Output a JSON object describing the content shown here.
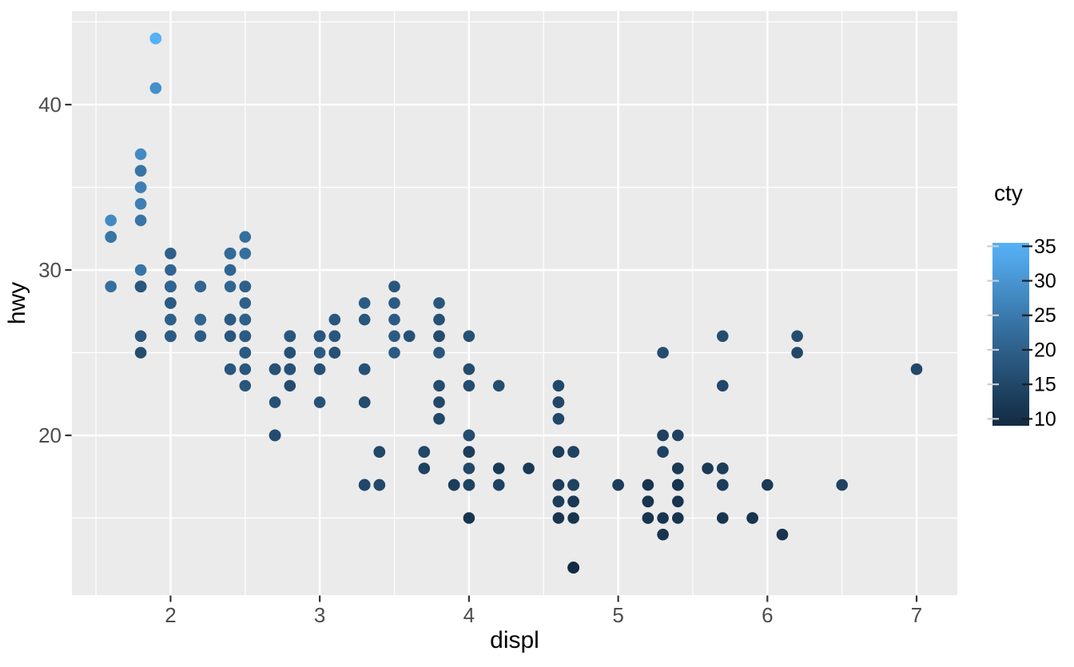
{
  "style": {
    "background": "#FFFFFF",
    "panel_bg": "#EBEBEB",
    "grid": "#FFFFFF",
    "axis_text": "#4D4D4D",
    "axis_title": "#000000",
    "tick_color": "#333333",
    "legend_text": "#000000",
    "legend_tick_left": "#C9CED3",
    "legend_tick_right": "#1E1E1E"
  },
  "chart_data": {
    "type": "scatter",
    "xlabel": "displ",
    "ylabel": "hwy",
    "xlim": [
      1.339,
      7.273
    ],
    "ylim": [
      10.34,
      45.65
    ],
    "x_ticks": [
      2,
      3,
      4,
      5,
      6,
      7
    ],
    "x_minor_ticks": [
      1.5,
      2.5,
      3.5,
      4.5,
      5.5,
      6.5
    ],
    "y_ticks": [
      20,
      30,
      40
    ],
    "y_minor_ticks": [
      15,
      25,
      35,
      45
    ],
    "grid": true,
    "legend": {
      "title": "cty",
      "position": "right",
      "ticks": [
        10,
        15,
        20,
        25,
        30,
        35
      ],
      "bar_lim": [
        9,
        35.5
      ]
    },
    "color_scale": {
      "type": "gradient",
      "low": "#132B43",
      "high": "#56B1F7",
      "domain": [
        9,
        35
      ]
    },
    "point_columns": [
      "displ",
      "hwy",
      "cty"
    ],
    "points": [
      [
        1.8,
        29,
        18
      ],
      [
        1.8,
        29,
        21
      ],
      [
        2.0,
        31,
        20
      ],
      [
        2.0,
        30,
        21
      ],
      [
        2.8,
        26,
        16
      ],
      [
        2.8,
        26,
        18
      ],
      [
        3.1,
        27,
        18
      ],
      [
        1.8,
        26,
        18
      ],
      [
        1.8,
        25,
        16
      ],
      [
        2.0,
        28,
        20
      ],
      [
        2.0,
        27,
        19
      ],
      [
        2.8,
        25,
        15
      ],
      [
        2.8,
        25,
        17
      ],
      [
        3.1,
        25,
        17
      ],
      [
        3.1,
        25,
        15
      ],
      [
        2.8,
        24,
        15
      ],
      [
        3.1,
        25,
        17
      ],
      [
        4.2,
        23,
        16
      ],
      [
        5.3,
        20,
        14
      ],
      [
        5.3,
        15,
        11
      ],
      [
        5.3,
        20,
        14
      ],
      [
        5.7,
        17,
        13
      ],
      [
        6.0,
        17,
        12
      ],
      [
        5.7,
        26,
        16
      ],
      [
        5.7,
        23,
        15
      ],
      [
        6.2,
        26,
        16
      ],
      [
        6.2,
        25,
        15
      ],
      [
        7.0,
        24,
        15
      ],
      [
        5.3,
        19,
        14
      ],
      [
        5.3,
        14,
        11
      ],
      [
        5.7,
        15,
        11
      ],
      [
        6.5,
        17,
        14
      ],
      [
        2.4,
        27,
        19
      ],
      [
        2.4,
        30,
        22
      ],
      [
        3.1,
        26,
        18
      ],
      [
        3.5,
        29,
        18
      ],
      [
        3.6,
        26,
        17
      ],
      [
        2.4,
        24,
        18
      ],
      [
        3.0,
        24,
        17
      ],
      [
        3.3,
        22,
        16
      ],
      [
        3.3,
        22,
        16
      ],
      [
        3.3,
        24,
        17
      ],
      [
        3.3,
        24,
        17
      ],
      [
        3.3,
        17,
        11
      ],
      [
        3.8,
        22,
        15
      ],
      [
        3.8,
        21,
        15
      ],
      [
        3.8,
        23,
        16
      ],
      [
        4.0,
        23,
        16
      ],
      [
        3.7,
        19,
        15
      ],
      [
        3.7,
        18,
        14
      ],
      [
        3.9,
        17,
        13
      ],
      [
        3.9,
        17,
        14
      ],
      [
        4.7,
        19,
        14
      ],
      [
        4.7,
        19,
        14
      ],
      [
        4.7,
        12,
        9
      ],
      [
        5.2,
        17,
        11
      ],
      [
        5.2,
        15,
        11
      ],
      [
        3.9,
        17,
        13
      ],
      [
        4.7,
        17,
        13
      ],
      [
        4.7,
        12,
        9
      ],
      [
        4.7,
        17,
        13
      ],
      [
        5.2,
        16,
        11
      ],
      [
        5.7,
        18,
        13
      ],
      [
        5.9,
        15,
        11
      ],
      [
        4.7,
        16,
        12
      ],
      [
        4.7,
        12,
        9
      ],
      [
        4.7,
        17,
        13
      ],
      [
        4.7,
        17,
        13
      ],
      [
        4.7,
        16,
        12
      ],
      [
        4.7,
        12,
        9
      ],
      [
        5.2,
        15,
        11
      ],
      [
        5.2,
        16,
        11
      ],
      [
        5.7,
        17,
        13
      ],
      [
        5.9,
        15,
        11
      ],
      [
        4.6,
        17,
        11
      ],
      [
        5.4,
        17,
        11
      ],
      [
        5.4,
        18,
        12
      ],
      [
        4.0,
        17,
        14
      ],
      [
        4.0,
        19,
        15
      ],
      [
        4.0,
        17,
        14
      ],
      [
        4.0,
        19,
        13
      ],
      [
        4.6,
        19,
        13
      ],
      [
        5.0,
        17,
        13
      ],
      [
        4.2,
        17,
        14
      ],
      [
        4.2,
        17,
        14
      ],
      [
        4.6,
        16,
        13
      ],
      [
        4.6,
        16,
        13
      ],
      [
        4.6,
        17,
        13
      ],
      [
        5.4,
        15,
        11
      ],
      [
        5.4,
        17,
        13
      ],
      [
        3.8,
        26,
        18
      ],
      [
        3.8,
        25,
        18
      ],
      [
        4.0,
        26,
        17
      ],
      [
        4.0,
        24,
        16
      ],
      [
        4.6,
        21,
        15
      ],
      [
        4.6,
        22,
        15
      ],
      [
        4.6,
        23,
        15
      ],
      [
        4.6,
        22,
        15
      ],
      [
        5.4,
        20,
        14
      ],
      [
        1.6,
        33,
        28
      ],
      [
        1.6,
        32,
        24
      ],
      [
        1.6,
        32,
        25
      ],
      [
        1.6,
        29,
        23
      ],
      [
        1.6,
        32,
        24
      ],
      [
        1.8,
        34,
        26
      ],
      [
        1.8,
        36,
        25
      ],
      [
        1.8,
        36,
        24
      ],
      [
        2.0,
        29,
        21
      ],
      [
        2.4,
        26,
        18
      ],
      [
        2.4,
        27,
        18
      ],
      [
        2.4,
        30,
        21
      ],
      [
        2.4,
        31,
        21
      ],
      [
        2.5,
        26,
        18
      ],
      [
        2.5,
        26,
        18
      ],
      [
        3.3,
        28,
        19
      ],
      [
        2.0,
        26,
        19
      ],
      [
        2.0,
        29,
        19
      ],
      [
        2.0,
        28,
        20
      ],
      [
        2.0,
        27,
        20
      ],
      [
        2.7,
        24,
        17
      ],
      [
        2.7,
        24,
        16
      ],
      [
        2.7,
        24,
        17
      ],
      [
        3.0,
        22,
        17
      ],
      [
        3.7,
        19,
        15
      ],
      [
        4.0,
        20,
        15
      ],
      [
        4.7,
        17,
        14
      ],
      [
        4.7,
        12,
        9
      ],
      [
        4.7,
        19,
        14
      ],
      [
        5.7,
        18,
        13
      ],
      [
        6.1,
        14,
        11
      ],
      [
        4.0,
        15,
        11
      ],
      [
        4.2,
        18,
        12
      ],
      [
        4.4,
        18,
        12
      ],
      [
        4.6,
        15,
        11
      ],
      [
        5.4,
        17,
        11
      ],
      [
        5.4,
        16,
        11
      ],
      [
        5.4,
        18,
        12
      ],
      [
        4.0,
        17,
        14
      ],
      [
        4.0,
        19,
        13
      ],
      [
        4.6,
        19,
        13
      ],
      [
        5.0,
        17,
        13
      ],
      [
        2.4,
        29,
        21
      ],
      [
        2.4,
        27,
        19
      ],
      [
        2.5,
        31,
        23
      ],
      [
        2.5,
        32,
        23
      ],
      [
        3.5,
        27,
        19
      ],
      [
        3.5,
        26,
        19
      ],
      [
        3.0,
        26,
        18
      ],
      [
        3.0,
        25,
        19
      ],
      [
        3.5,
        25,
        19
      ],
      [
        3.3,
        17,
        14
      ],
      [
        3.3,
        17,
        15
      ],
      [
        4.0,
        20,
        14
      ],
      [
        5.6,
        18,
        12
      ],
      [
        3.1,
        26,
        18
      ],
      [
        3.8,
        26,
        16
      ],
      [
        3.8,
        27,
        17
      ],
      [
        3.8,
        28,
        18
      ],
      [
        5.3,
        25,
        16
      ],
      [
        2.5,
        25,
        18
      ],
      [
        2.5,
        24,
        18
      ],
      [
        2.5,
        27,
        20
      ],
      [
        2.5,
        25,
        19
      ],
      [
        2.5,
        26,
        20
      ],
      [
        2.5,
        23,
        18
      ],
      [
        2.2,
        26,
        21
      ],
      [
        2.2,
        26,
        19
      ],
      [
        2.5,
        26,
        19
      ],
      [
        2.5,
        26,
        19
      ],
      [
        2.5,
        25,
        20
      ],
      [
        2.5,
        27,
        20
      ],
      [
        2.5,
        25,
        19
      ],
      [
        2.5,
        27,
        20
      ],
      [
        2.7,
        20,
        15
      ],
      [
        2.7,
        20,
        16
      ],
      [
        3.4,
        19,
        15
      ],
      [
        3.4,
        17,
        15
      ],
      [
        4.0,
        20,
        16
      ],
      [
        4.7,
        17,
        14
      ],
      [
        2.2,
        29,
        21
      ],
      [
        2.2,
        27,
        21
      ],
      [
        2.4,
        31,
        21
      ],
      [
        2.4,
        31,
        21
      ],
      [
        3.0,
        26,
        18
      ],
      [
        3.0,
        26,
        18
      ],
      [
        3.5,
        28,
        19
      ],
      [
        2.2,
        27,
        21
      ],
      [
        2.2,
        29,
        21
      ],
      [
        2.4,
        31,
        21
      ],
      [
        2.4,
        31,
        22
      ],
      [
        3.0,
        26,
        18
      ],
      [
        3.0,
        26,
        18
      ],
      [
        3.3,
        27,
        18
      ],
      [
        1.8,
        30,
        24
      ],
      [
        1.8,
        33,
        24
      ],
      [
        1.8,
        35,
        26
      ],
      [
        1.8,
        37,
        28
      ],
      [
        1.8,
        35,
        26
      ],
      [
        4.7,
        15,
        11
      ],
      [
        5.7,
        18,
        13
      ],
      [
        2.7,
        20,
        15
      ],
      [
        2.7,
        20,
        16
      ],
      [
        2.7,
        22,
        17
      ],
      [
        3.4,
        17,
        15
      ],
      [
        3.4,
        19,
        15
      ],
      [
        4.0,
        18,
        15
      ],
      [
        4.0,
        20,
        16
      ],
      [
        2.0,
        29,
        21
      ],
      [
        2.0,
        26,
        19
      ],
      [
        2.0,
        29,
        21
      ],
      [
        2.0,
        29,
        22
      ],
      [
        2.8,
        24,
        17
      ],
      [
        1.9,
        44,
        33
      ],
      [
        2.0,
        29,
        21
      ],
      [
        2.0,
        26,
        19
      ],
      [
        2.0,
        29,
        22
      ],
      [
        2.0,
        29,
        21
      ],
      [
        2.5,
        29,
        21
      ],
      [
        2.5,
        29,
        21
      ],
      [
        2.8,
        23,
        16
      ],
      [
        2.8,
        24,
        17
      ],
      [
        1.9,
        44,
        35
      ],
      [
        1.9,
        41,
        29
      ],
      [
        2.0,
        29,
        21
      ],
      [
        2.0,
        26,
        19
      ],
      [
        2.5,
        28,
        20
      ],
      [
        2.5,
        29,
        20
      ],
      [
        1.8,
        29,
        21
      ],
      [
        1.8,
        29,
        18
      ],
      [
        2.0,
        28,
        19
      ],
      [
        2.0,
        29,
        21
      ],
      [
        2.8,
        26,
        16
      ],
      [
        2.8,
        26,
        18
      ],
      [
        3.6,
        26,
        17
      ]
    ]
  }
}
